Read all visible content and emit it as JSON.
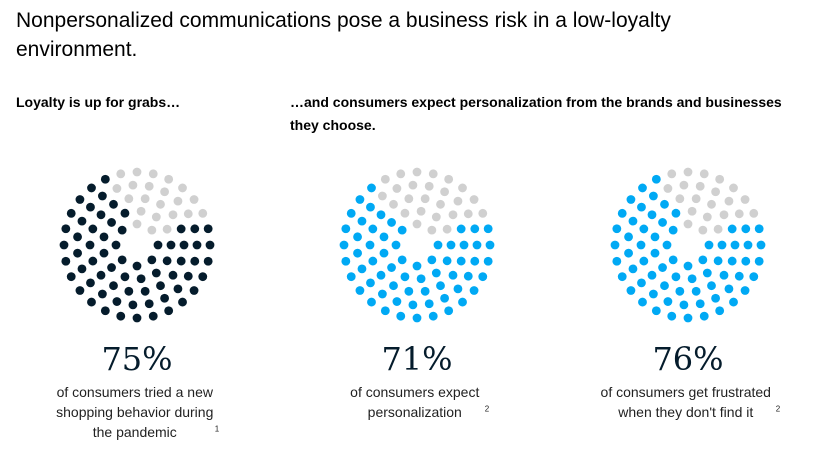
{
  "title": "Nonpersonalized communications pose a business risk in a low-loyalty environment.",
  "subtitle_left": "Loyalty is up for grabs…",
  "subtitle_right": "…and consumers expect personalization from the brands and businesses they choose.",
  "colors": {
    "inactive": "#d0d0d0",
    "dark": "#051c2c",
    "blue": "#00a9f4"
  },
  "chart_data": [
    {
      "type": "dot-ring",
      "value_percent": 75,
      "label": "75%",
      "color": "#051c2c",
      "description": "of consumers tried a new shopping behavior during the pandemic",
      "footnote": "1"
    },
    {
      "type": "dot-ring",
      "value_percent": 71,
      "label": "71%",
      "color": "#00a9f4",
      "description": "of consumers expect personalization",
      "footnote": "2"
    },
    {
      "type": "dot-ring",
      "value_percent": 76,
      "label": "76%",
      "color": "#00a9f4",
      "description": "of consumers get frustrated when they don't find it",
      "footnote": "2"
    }
  ]
}
